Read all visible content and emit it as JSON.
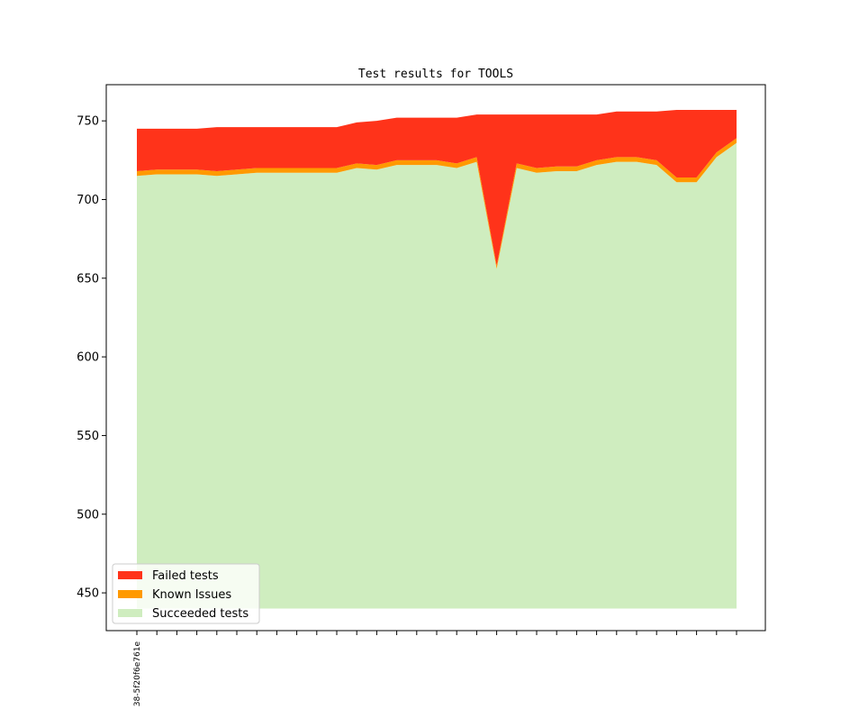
{
  "chart_data": {
    "type": "area",
    "title": "Test results for TOOLS",
    "xlabel": "",
    "ylabel": "",
    "ylim": [
      426,
      773
    ],
    "yticks": [
      450,
      500,
      550,
      600,
      650,
      700,
      750
    ],
    "x_tick_labels": [
      "38-5f20f6e761e"
    ],
    "area_baseline": 440,
    "series": [
      {
        "name": "Succeeded tests",
        "color": "#cfedbf",
        "values": [
          715,
          716,
          716,
          716,
          715,
          716,
          717,
          717,
          717,
          717,
          717,
          720,
          719,
          722,
          722,
          722,
          720,
          724,
          656,
          720,
          717,
          718,
          718,
          722,
          724,
          724,
          722,
          711,
          711,
          727,
          736
        ]
      },
      {
        "name": "Known Issues",
        "color": "#ff9900",
        "values": [
          3,
          3,
          3,
          3,
          3,
          3,
          3,
          3,
          3,
          3,
          3,
          3,
          3,
          3,
          3,
          3,
          3,
          3,
          2,
          3,
          3,
          3,
          3,
          3,
          3,
          3,
          3,
          3,
          3,
          3,
          3
        ]
      },
      {
        "name": "Failed tests",
        "color": "#ff331a",
        "values": [
          27,
          26,
          26,
          26,
          28,
          27,
          26,
          26,
          26,
          26,
          26,
          26,
          28,
          27,
          27,
          27,
          29,
          27,
          96,
          31,
          34,
          33,
          33,
          29,
          29,
          29,
          31,
          43,
          43,
          27,
          18
        ]
      }
    ],
    "legend_position": "lower-left",
    "grid": false
  }
}
